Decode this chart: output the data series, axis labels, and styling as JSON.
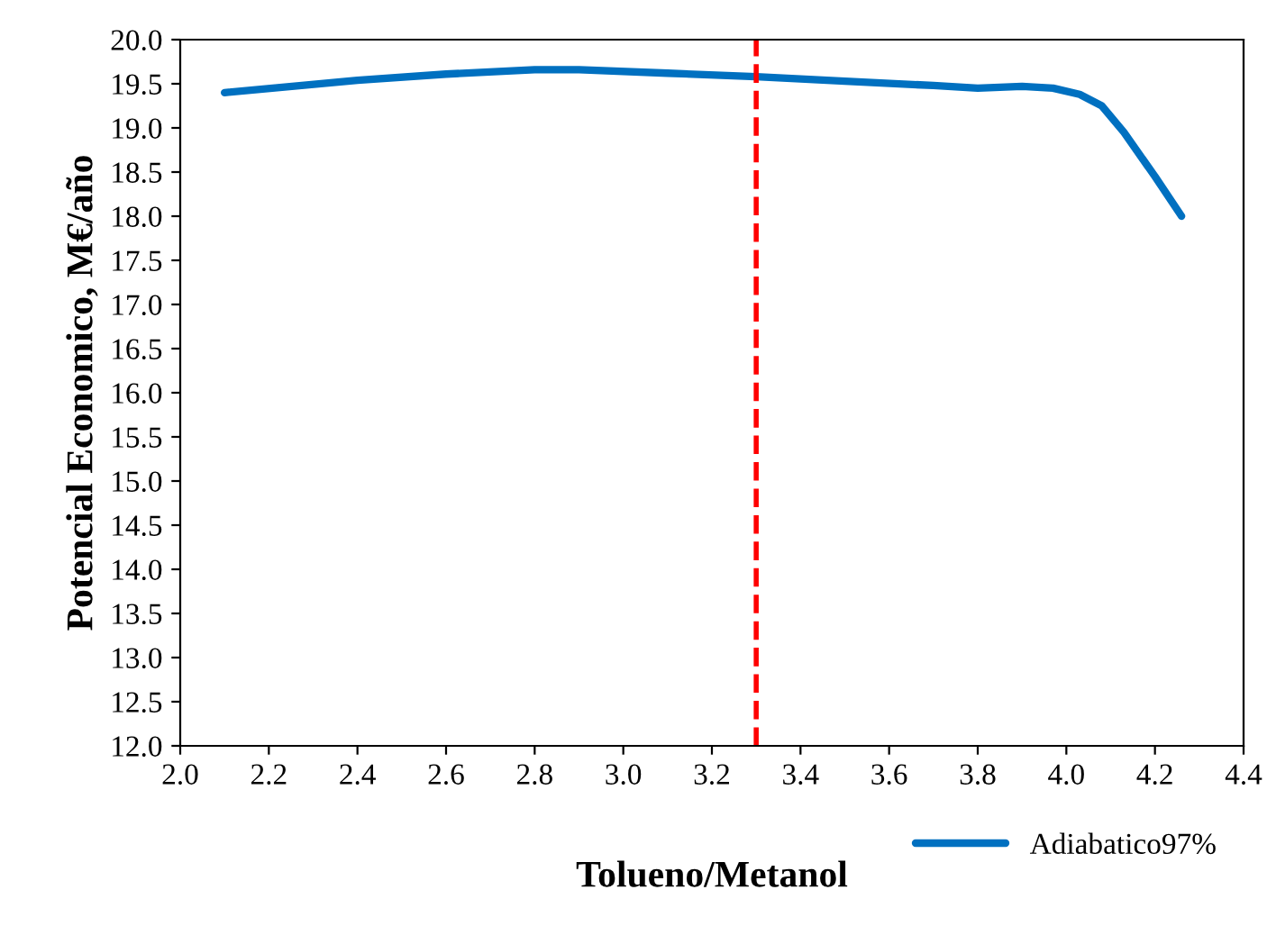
{
  "chart_data": {
    "type": "line",
    "xlabel": "Tolueno/Metanol",
    "ylabel": "Potencial Economico, M€/año",
    "x": [
      2.1,
      2.4,
      2.6,
      2.8,
      2.9,
      3.1,
      3.3,
      3.5,
      3.7,
      3.8,
      3.9,
      3.97,
      4.03,
      4.08,
      4.13,
      4.2,
      4.26
    ],
    "series": [
      {
        "name": "Adiabatico97%",
        "color": "#0070c0",
        "values": [
          19.4,
          19.54,
          19.61,
          19.66,
          19.66,
          19.62,
          19.58,
          19.53,
          19.48,
          19.45,
          19.47,
          19.45,
          19.38,
          19.25,
          18.95,
          18.45,
          18.0
        ]
      }
    ],
    "xlim": [
      2.0,
      4.4
    ],
    "xticks": [
      {
        "value": 2,
        "label": "2.0"
      },
      2.2,
      2.4,
      2.6,
      2.8,
      {
        "value": 3,
        "label": "3.0"
      },
      3.2,
      3.4,
      3.6,
      3.8,
      {
        "value": 4,
        "label": "4.0"
      },
      4.2,
      4.4
    ],
    "ylim": [
      12.0,
      20.0
    ],
    "yticks": [
      {
        "value": 12,
        "label": "12.0"
      },
      12.5,
      {
        "value": 13,
        "label": "13.0"
      },
      13.5,
      {
        "value": 14,
        "label": "14.0"
      },
      14.5,
      {
        "value": 15,
        "label": "15.0"
      },
      15.5,
      {
        "value": 16,
        "label": "16.0"
      },
      16.5,
      {
        "value": 17,
        "label": "17.0"
      },
      17.5,
      {
        "value": 18,
        "label": "18.0"
      },
      18.5,
      {
        "value": 19,
        "label": "19.0"
      },
      19.5,
      {
        "value": 20,
        "label": "20.0"
      }
    ],
    "ref_lines": [
      {
        "axis": "x",
        "value": 3.3,
        "color": "#ff0000",
        "line_style": "dashed"
      }
    ],
    "legend": "bottom right",
    "grid": false,
    "marker": "none",
    "line_style": "solid"
  }
}
